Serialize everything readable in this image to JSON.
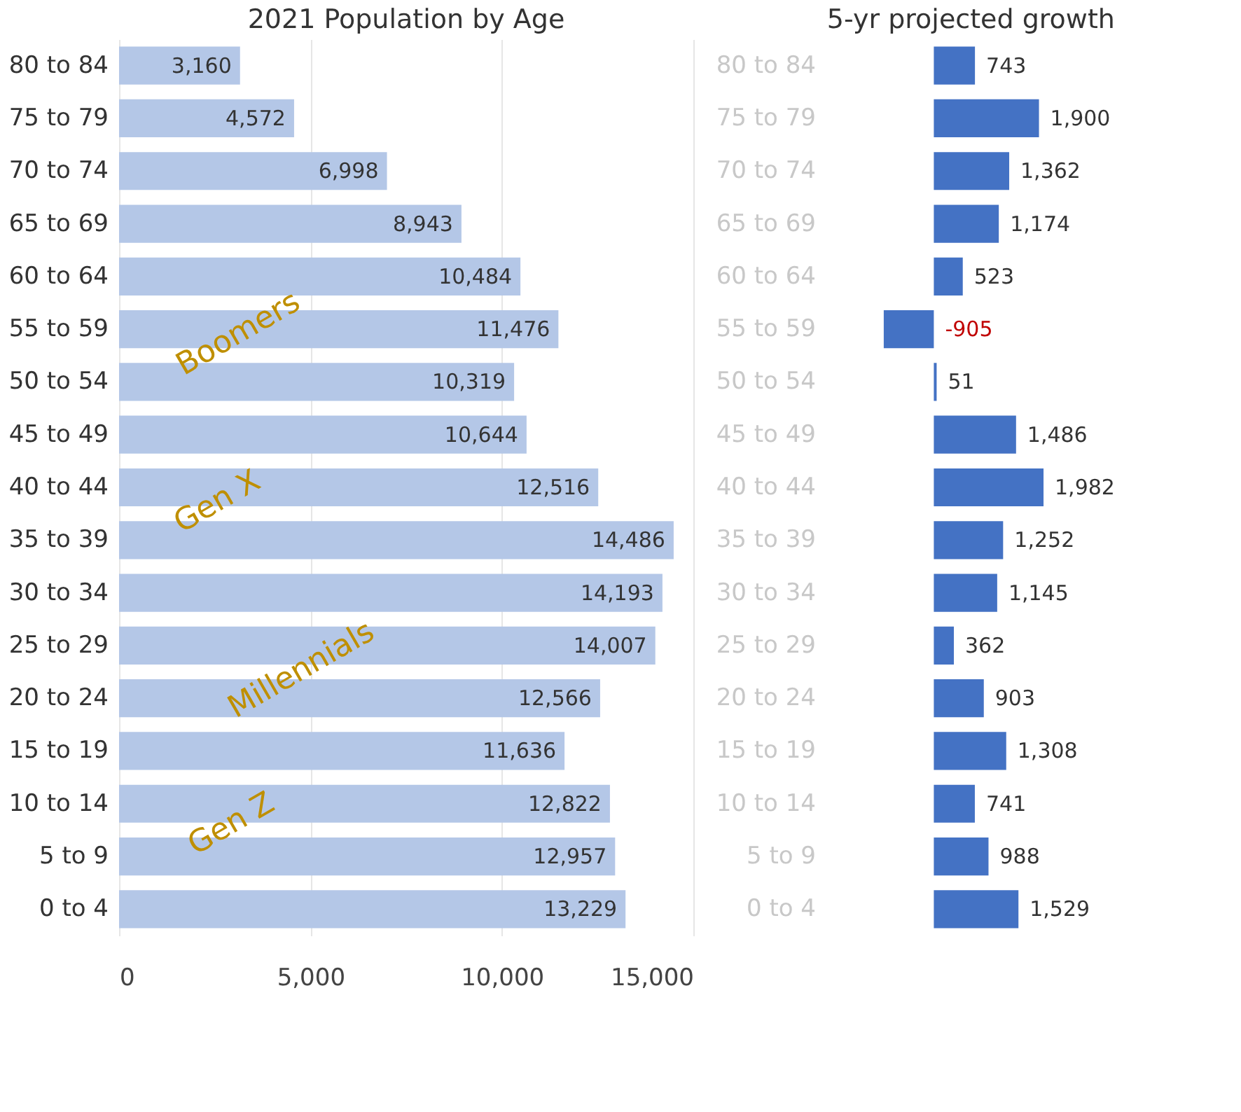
{
  "chart_data": [
    {
      "type": "bar",
      "orientation": "horizontal",
      "title": "2021 Population by Age",
      "categories": [
        "80 to 84",
        "75 to 79",
        "70 to 74",
        "65 to 69",
        "60 to 64",
        "55 to 59",
        "50 to 54",
        "45 to 49",
        "40 to 44",
        "35 to 39",
        "30 to 34",
        "25 to 29",
        "20 to 24",
        "15 to 19",
        "10 to 14",
        "5 to 9",
        "0 to 4"
      ],
      "values": [
        3160,
        4572,
        6998,
        8943,
        10484,
        11476,
        10319,
        10644,
        12516,
        14486,
        14193,
        14007,
        12566,
        11636,
        12822,
        12957,
        13229
      ],
      "value_labels": [
        "3,160",
        "4,572",
        "6,998",
        "8,943",
        "10,484",
        "11,476",
        "10,319",
        "10,644",
        "12,516",
        "14,486",
        "14,193",
        "14,007",
        "12,566",
        "11,636",
        "12,822",
        "12,957",
        "13,229"
      ],
      "color": "#b4c7e7",
      "xlim": [
        0,
        15000
      ],
      "xticks": [
        0,
        {
          "value": 5000,
          "label": "5,000"
        },
        {
          "value": 10000,
          "label": "10,000"
        },
        {
          "value": 15000,
          "label": "15,000"
        }
      ],
      "grid": "x",
      "annotations": [
        "Boomers",
        "Gen X",
        "Millennials",
        "Gen Z"
      ]
    },
    {
      "type": "bar",
      "orientation": "horizontal",
      "title": "5-yr projected growth",
      "categories": [
        "80 to 84",
        "75 to 79",
        "70 to 74",
        "65 to 69",
        "60 to 64",
        "55 to 59",
        "50 to 54",
        "45 to 49",
        "40 to 44",
        "35 to 39",
        "30 to 34",
        "25 to 29",
        "20 to 24",
        "15 to 19",
        "10 to 14",
        "5 to 9",
        "0 to 4"
      ],
      "values": [
        743,
        1900,
        1362,
        1174,
        523,
        -905,
        51,
        1486,
        1982,
        1252,
        1145,
        362,
        903,
        1308,
        741,
        988,
        1529
      ],
      "value_labels": [
        "743",
        "1,900",
        "1,362",
        "1,174",
        "523",
        "-905",
        "51",
        "1,486",
        "1,982",
        "1,252",
        "1,145",
        "362",
        "903",
        "1,308",
        "741",
        "988",
        "1,529"
      ],
      "color": "#4472c4"
    }
  ]
}
